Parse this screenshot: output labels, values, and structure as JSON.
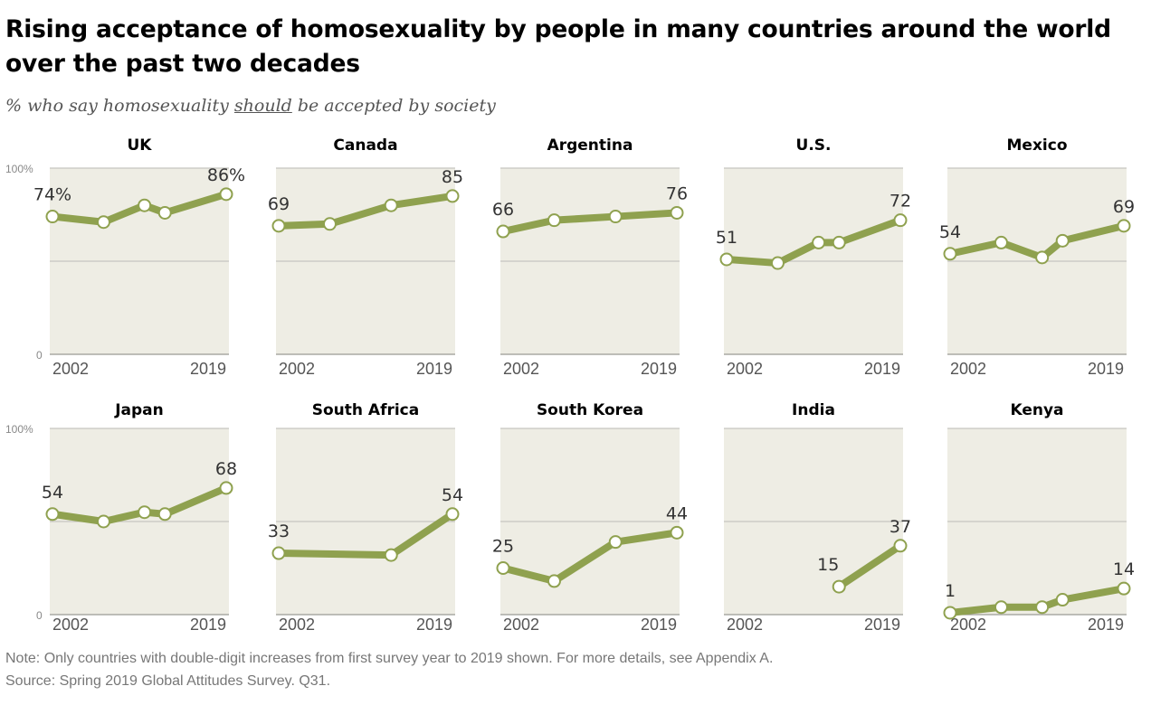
{
  "title": "Rising acceptance of homosexuality by people in many countries around the world over the past two decades",
  "subtitle": {
    "prefix": "% who say homosexuality ",
    "emphasis": "should",
    "suffix": " be accepted by society"
  },
  "note": "Note: Only countries with double-digit increases from first survey year to 2019 shown. For more details, see Appendix A.",
  "source": "Source: Spring 2019 Global Attitudes Survey. Q31.",
  "colors": {
    "line": "#8fa14f",
    "panel_bg": "#eeede4",
    "grid": "#c6c6c0",
    "marker_fill": "#ffffff"
  },
  "chart_data": {
    "type": "line",
    "y_axis": {
      "ylim": [
        0,
        100
      ],
      "ticks": [
        "0",
        "100%"
      ]
    },
    "x_axis_labels": [
      "2002",
      "2019"
    ],
    "grid": "50% gridline",
    "layout": "small multiples, 2 rows x 5 columns",
    "panels": [
      {
        "name": "UK",
        "x": [
          2002,
          2007,
          2011,
          2013,
          2019
        ],
        "values": [
          74,
          71,
          80,
          76,
          86
        ],
        "labels": [
          "74%",
          "86%"
        ]
      },
      {
        "name": "Canada",
        "x": [
          2002,
          2007,
          2013,
          2019
        ],
        "values": [
          69,
          70,
          80,
          85
        ],
        "labels": [
          "69",
          "85"
        ]
      },
      {
        "name": "Argentina",
        "x": [
          2002,
          2007,
          2013,
          2019
        ],
        "values": [
          66,
          72,
          74,
          76
        ],
        "labels": [
          "66",
          "76"
        ]
      },
      {
        "name": "U.S.",
        "x": [
          2002,
          2007,
          2011,
          2013,
          2019
        ],
        "values": [
          51,
          49,
          60,
          60,
          72
        ],
        "labels": [
          "51",
          "72"
        ]
      },
      {
        "name": "Mexico",
        "x": [
          2002,
          2007,
          2011,
          2013,
          2019
        ],
        "values": [
          54,
          60,
          52,
          61,
          69
        ],
        "labels": [
          "54",
          "69"
        ]
      },
      {
        "name": "Japan",
        "x": [
          2002,
          2007,
          2011,
          2013,
          2019
        ],
        "values": [
          54,
          50,
          55,
          54,
          68
        ],
        "labels": [
          "54",
          "68"
        ]
      },
      {
        "name": "South Africa",
        "x": [
          2002,
          2013,
          2019
        ],
        "values": [
          33,
          32,
          54
        ],
        "labels": [
          "33",
          "54"
        ]
      },
      {
        "name": "South Korea",
        "x": [
          2002,
          2007,
          2013,
          2019
        ],
        "values": [
          25,
          18,
          39,
          44
        ],
        "labels": [
          "25",
          "44"
        ]
      },
      {
        "name": "India",
        "x": [
          2013,
          2019
        ],
        "values": [
          15,
          37
        ],
        "labels": [
          "15",
          "37"
        ]
      },
      {
        "name": "Kenya",
        "x": [
          2002,
          2007,
          2011,
          2013,
          2019
        ],
        "values": [
          1,
          4,
          4,
          8,
          14
        ],
        "labels": [
          "1",
          "14"
        ]
      }
    ]
  }
}
